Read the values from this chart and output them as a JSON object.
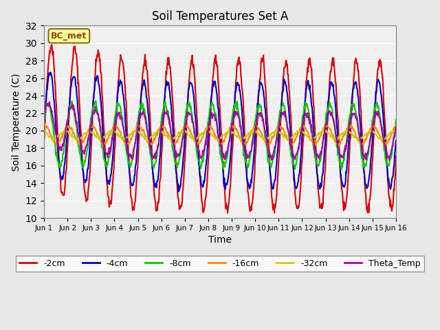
{
  "title": "Soil Temperatures Set A",
  "xlabel": "Time",
  "ylabel": "Soil Temperature (C)",
  "ylim": [
    10,
    32
  ],
  "yticks": [
    10,
    12,
    14,
    16,
    18,
    20,
    22,
    24,
    26,
    28,
    30,
    32
  ],
  "annotation": "BC_met",
  "bg_color": "#e8e8e8",
  "plot_bg": "#f0f0f0",
  "series": {
    "depth_2cm": {
      "color": "#dd0000",
      "label": "-2cm",
      "linewidth": 1.5
    },
    "depth_4cm": {
      "color": "#0000cc",
      "label": "-4cm",
      "linewidth": 1.5
    },
    "depth_8cm": {
      "color": "#00cc00",
      "label": "-8cm",
      "linewidth": 1.5
    },
    "depth_16cm": {
      "color": "#ff8800",
      "label": "-16cm",
      "linewidth": 1.5
    },
    "depth_32cm": {
      "color": "#cccc00",
      "label": "-32cm",
      "linewidth": 1.5
    },
    "theta_temp": {
      "color": "#aa00aa",
      "label": "Theta_Temp",
      "linewidth": 1.5
    }
  },
  "xtick_positions": [
    0,
    1,
    2,
    3,
    4,
    5,
    6,
    7,
    8,
    9,
    10,
    11,
    12,
    13,
    14,
    15
  ],
  "xtick_labels": [
    "Jun 1",
    "Jun 2",
    "Jun 3",
    "Jun 4",
    "Jun 5",
    "Jun 6",
    "Jun 7",
    "Jun 8",
    "Jun 9",
    "Jun 10",
    "Jun 11",
    "Jun 12",
    "Jun 13",
    "Jun 14",
    "Jun 15",
    "Jun 16"
  ],
  "num_days": 16,
  "pts_per_day": 48
}
